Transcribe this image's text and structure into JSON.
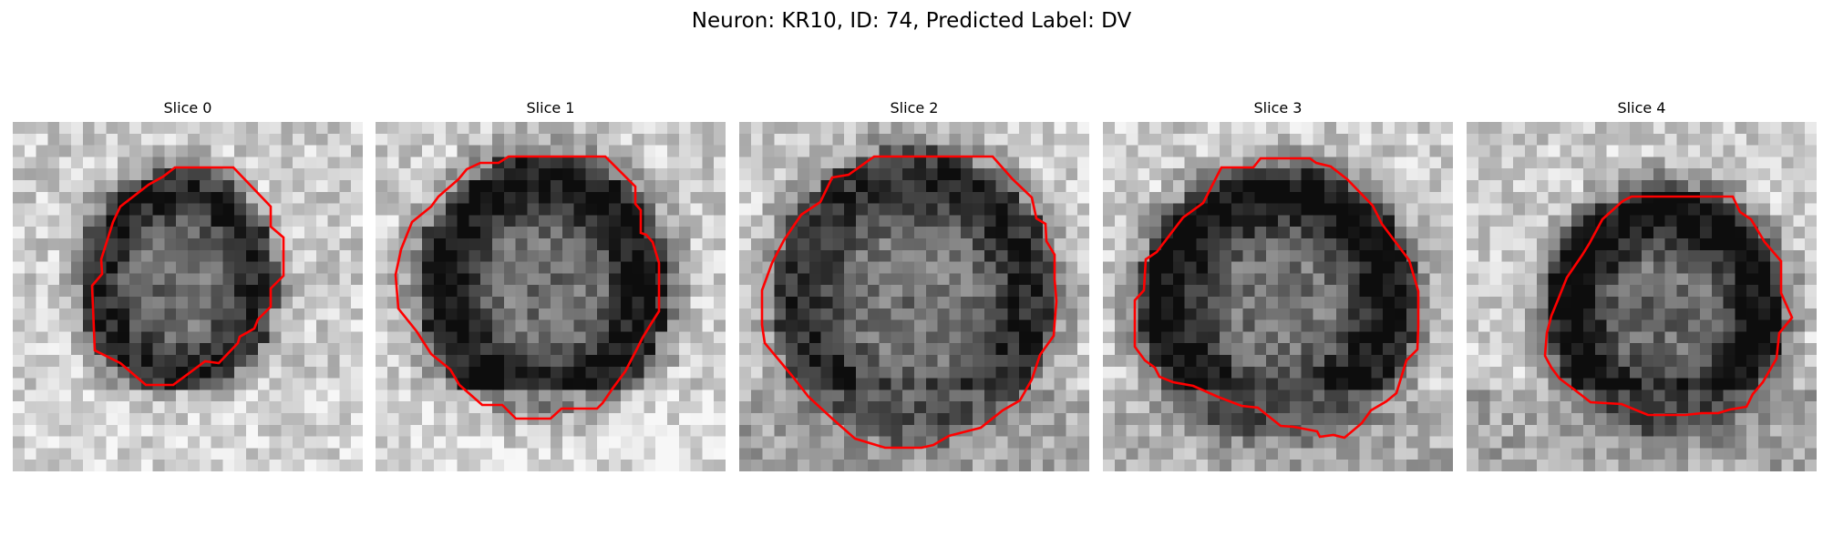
{
  "figure": {
    "title": "Neuron: KR10, ID: 74, Predicted Label: DV",
    "contour_color": "#ff0000",
    "colormap": "gray",
    "panels": [
      {
        "title": "Slice 0",
        "image_description": "grayscale micrograph patch, darker ring-shaped cell body with red contour"
      },
      {
        "title": "Slice 1",
        "image_description": "grayscale micrograph patch, dark cell body with brighter nucleus and red contour"
      },
      {
        "title": "Slice 2",
        "image_description": "grayscale micrograph patch, mottled dark region with large octagonal red contour"
      },
      {
        "title": "Slice 3",
        "image_description": "grayscale micrograph patch, dark triangular cell body with bright nucleus and red contour"
      },
      {
        "title": "Slice 4",
        "image_description": "grayscale micrograph patch, dark ring around bright center with red contour"
      }
    ]
  }
}
